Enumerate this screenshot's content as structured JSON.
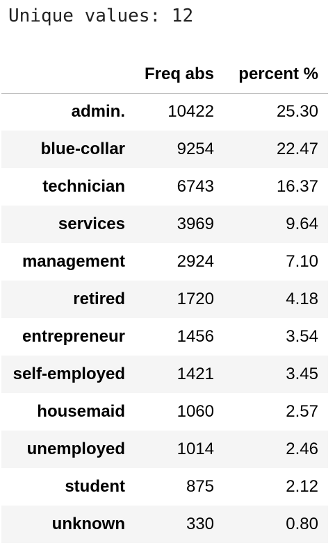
{
  "output": {
    "unique_values_text": "Unique values: 12"
  },
  "table": {
    "columns": {
      "index": "",
      "freq_abs": "Freq abs",
      "percent": "percent %"
    },
    "rows": [
      {
        "label": "admin.",
        "freq": "10422",
        "pct": "25.30"
      },
      {
        "label": "blue-collar",
        "freq": "9254",
        "pct": "22.47"
      },
      {
        "label": "technician",
        "freq": "6743",
        "pct": "16.37"
      },
      {
        "label": "services",
        "freq": "3969",
        "pct": "9.64"
      },
      {
        "label": "management",
        "freq": "2924",
        "pct": "7.10"
      },
      {
        "label": "retired",
        "freq": "1720",
        "pct": "4.18"
      },
      {
        "label": "entrepreneur",
        "freq": "1456",
        "pct": "3.54"
      },
      {
        "label": "self-employed",
        "freq": "1421",
        "pct": "3.45"
      },
      {
        "label": "housemaid",
        "freq": "1060",
        "pct": "2.57"
      },
      {
        "label": "unemployed",
        "freq": "1014",
        "pct": "2.46"
      },
      {
        "label": "student",
        "freq": "875",
        "pct": "2.12"
      },
      {
        "label": "unknown",
        "freq": "330",
        "pct": "0.80"
      }
    ]
  },
  "colors": {
    "stripe": "#f5f5f5",
    "header_rule": "#bdbdbd",
    "text": "#000000"
  }
}
